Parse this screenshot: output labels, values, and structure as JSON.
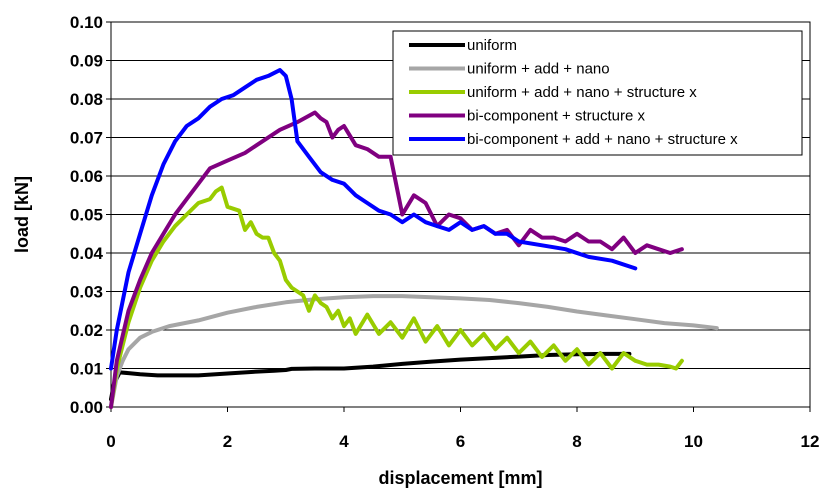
{
  "chart_data": {
    "type": "line",
    "title": "",
    "xlabel": "displacement [mm]",
    "ylabel": "load [kN]",
    "xlim": [
      0,
      12
    ],
    "ylim": [
      0,
      0.1
    ],
    "xticks": [
      "0",
      "2",
      "4",
      "6",
      "8",
      "10",
      "12"
    ],
    "yticks": [
      "0.00",
      "0.01",
      "0.02",
      "0.03",
      "0.04",
      "0.05",
      "0.06",
      "0.07",
      "0.08",
      "0.09",
      "0.10"
    ],
    "grid": "horizontal",
    "legend_position": "top-right",
    "series": [
      {
        "name": "uniform",
        "color": "#000000",
        "x": [
          0,
          0.05,
          0.15,
          0.3,
          0.5,
          0.8,
          1.2,
          1.5,
          2.0,
          2.5,
          2.8,
          3.0,
          3.1,
          3.5,
          4.0,
          4.5,
          5.0,
          5.5,
          6.0,
          6.5,
          7.0,
          7.5,
          8.0,
          8.5,
          8.9
        ],
        "y": [
          0.002,
          0.006,
          0.009,
          0.0088,
          0.0085,
          0.0082,
          0.0082,
          0.0082,
          0.0087,
          0.0092,
          0.0094,
          0.0096,
          0.0099,
          0.01,
          0.01,
          0.0105,
          0.0112,
          0.0118,
          0.0123,
          0.0127,
          0.0131,
          0.0135,
          0.0137,
          0.0138,
          0.0138
        ]
      },
      {
        "name": "uniform + add + nano",
        "color": "#a6a6a6",
        "x": [
          0,
          0.1,
          0.2,
          0.3,
          0.5,
          0.7,
          1.0,
          1.5,
          2.0,
          2.5,
          3.0,
          3.5,
          4.0,
          4.5,
          5.0,
          5.5,
          6.0,
          6.5,
          7.0,
          7.5,
          8.0,
          8.5,
          9.0,
          9.5,
          10.0,
          10.4
        ],
        "y": [
          0,
          0.008,
          0.012,
          0.015,
          0.018,
          0.0195,
          0.021,
          0.0225,
          0.0245,
          0.026,
          0.0272,
          0.028,
          0.0285,
          0.0288,
          0.0288,
          0.0285,
          0.0282,
          0.0278,
          0.027,
          0.026,
          0.0248,
          0.0238,
          0.0228,
          0.0218,
          0.0212,
          0.0205
        ]
      },
      {
        "name": "uniform + add + nano + structure x",
        "color": "#99cc00",
        "x": [
          0,
          0.1,
          0.3,
          0.5,
          0.7,
          0.9,
          1.1,
          1.3,
          1.5,
          1.7,
          1.8,
          1.9,
          2.0,
          2.2,
          2.3,
          2.4,
          2.5,
          2.6,
          2.7,
          2.8,
          2.9,
          3.0,
          3.1,
          3.2,
          3.3,
          3.4,
          3.5,
          3.6,
          3.7,
          3.8,
          3.9,
          4.0,
          4.1,
          4.2,
          4.4,
          4.6,
          4.8,
          5.0,
          5.2,
          5.4,
          5.6,
          5.8,
          6.0,
          6.2,
          6.4,
          6.6,
          6.8,
          7.0,
          7.2,
          7.4,
          7.6,
          7.8,
          8.0,
          8.2,
          8.4,
          8.6,
          8.8,
          9.0,
          9.2,
          9.4,
          9.6,
          9.7,
          9.8
        ],
        "y": [
          0,
          0.01,
          0.022,
          0.031,
          0.038,
          0.043,
          0.047,
          0.05,
          0.053,
          0.054,
          0.056,
          0.057,
          0.052,
          0.051,
          0.046,
          0.048,
          0.045,
          0.044,
          0.044,
          0.04,
          0.038,
          0.033,
          0.031,
          0.03,
          0.029,
          0.025,
          0.029,
          0.027,
          0.026,
          0.023,
          0.025,
          0.021,
          0.023,
          0.019,
          0.024,
          0.019,
          0.022,
          0.018,
          0.023,
          0.017,
          0.021,
          0.016,
          0.02,
          0.016,
          0.019,
          0.015,
          0.018,
          0.014,
          0.017,
          0.013,
          0.016,
          0.012,
          0.015,
          0.011,
          0.014,
          0.01,
          0.014,
          0.012,
          0.011,
          0.011,
          0.0105,
          0.01,
          0.012
        ]
      },
      {
        "name": "bi-component + structure x",
        "color": "#800080",
        "x": [
          0,
          0.1,
          0.3,
          0.5,
          0.7,
          0.9,
          1.1,
          1.3,
          1.5,
          1.7,
          2.0,
          2.3,
          2.6,
          2.9,
          3.2,
          3.5,
          3.6,
          3.7,
          3.8,
          3.9,
          4.0,
          4.2,
          4.4,
          4.6,
          4.8,
          5.0,
          5.2,
          5.4,
          5.6,
          5.8,
          6.0,
          6.2,
          6.4,
          6.6,
          6.8,
          7.0,
          7.2,
          7.4,
          7.6,
          7.8,
          8.0,
          8.2,
          8.4,
          8.6,
          8.8,
          9.0,
          9.2,
          9.4,
          9.6,
          9.8
        ],
        "y": [
          0,
          0.012,
          0.025,
          0.033,
          0.04,
          0.045,
          0.05,
          0.054,
          0.058,
          0.062,
          0.064,
          0.066,
          0.069,
          0.072,
          0.074,
          0.0765,
          0.075,
          0.074,
          0.07,
          0.072,
          0.073,
          0.068,
          0.067,
          0.065,
          0.065,
          0.05,
          0.055,
          0.053,
          0.047,
          0.05,
          0.049,
          0.046,
          0.047,
          0.045,
          0.046,
          0.042,
          0.046,
          0.044,
          0.044,
          0.043,
          0.045,
          0.043,
          0.043,
          0.041,
          0.044,
          0.04,
          0.042,
          0.041,
          0.04,
          0.041
        ]
      },
      {
        "name": "bi-component + add + nano + structure x",
        "color": "#0000ff",
        "x": [
          0,
          0.1,
          0.3,
          0.5,
          0.7,
          0.9,
          1.1,
          1.3,
          1.5,
          1.7,
          1.9,
          2.1,
          2.3,
          2.5,
          2.7,
          2.9,
          3.0,
          3.1,
          3.2,
          3.4,
          3.6,
          3.8,
          4.0,
          4.2,
          4.4,
          4.6,
          4.8,
          5.0,
          5.2,
          5.4,
          5.6,
          5.8,
          6.0,
          6.2,
          6.4,
          6.6,
          6.8,
          7.0,
          7.4,
          7.8,
          8.2,
          8.6,
          9.0
        ],
        "y": [
          0.01,
          0.02,
          0.035,
          0.045,
          0.055,
          0.063,
          0.069,
          0.073,
          0.075,
          0.078,
          0.08,
          0.081,
          0.083,
          0.085,
          0.086,
          0.0875,
          0.086,
          0.08,
          0.069,
          0.065,
          0.061,
          0.059,
          0.058,
          0.055,
          0.053,
          0.051,
          0.05,
          0.048,
          0.05,
          0.048,
          0.047,
          0.046,
          0.048,
          0.046,
          0.047,
          0.045,
          0.045,
          0.043,
          0.042,
          0.041,
          0.039,
          0.038,
          0.036
        ]
      }
    ]
  }
}
